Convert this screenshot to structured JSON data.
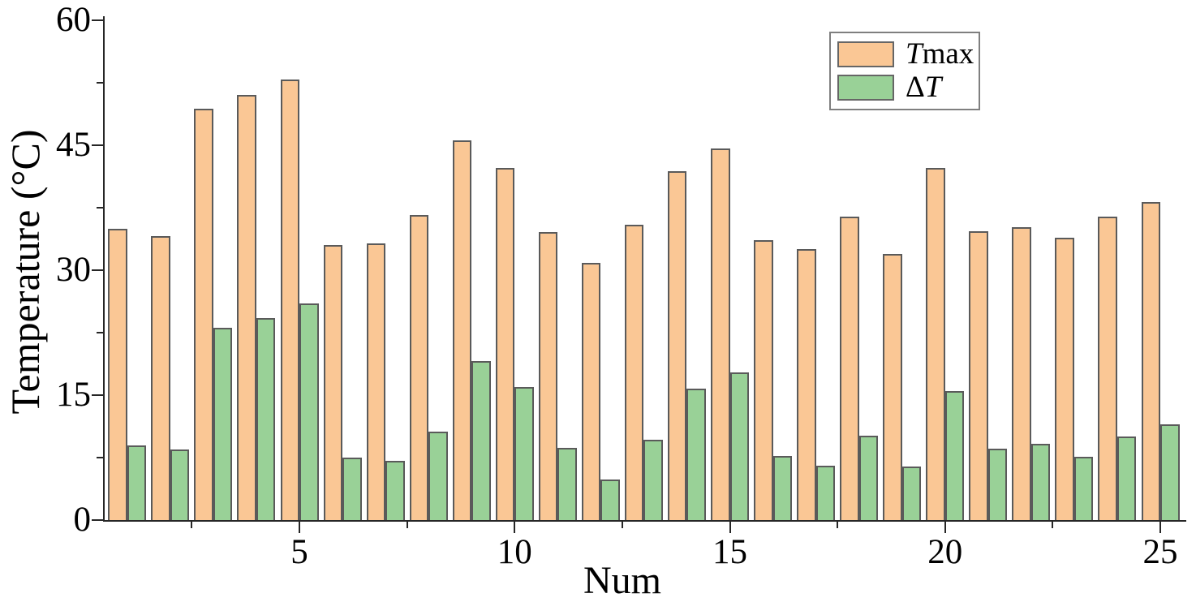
{
  "chart_data": {
    "type": "bar",
    "title": "",
    "xlabel": "Num",
    "ylabel": "Temperature (°C)",
    "categories": [
      1,
      2,
      3,
      4,
      5,
      6,
      7,
      8,
      9,
      10,
      11,
      12,
      13,
      14,
      15,
      16,
      17,
      18,
      19,
      20,
      21,
      22,
      23,
      24,
      25
    ],
    "series": [
      {
        "name": "Tmax",
        "label_segments": [
          {
            "text": "T",
            "italic": true
          },
          {
            "text": "max",
            "italic": false
          }
        ],
        "color": "#FAC795",
        "edge_color": "#5A5A5A",
        "values": [
          35.0,
          34.1,
          49.4,
          51.0,
          52.9,
          33.0,
          33.2,
          36.6,
          45.6,
          42.3,
          34.6,
          30.9,
          35.5,
          41.9,
          44.6,
          33.6,
          32.5,
          36.4,
          31.9,
          42.3,
          34.7,
          35.2,
          33.9,
          36.4,
          38.2
        ]
      },
      {
        "name": "ΔT",
        "label_segments": [
          {
            "text": "Δ",
            "italic": false
          },
          {
            "text": "T",
            "italic": true
          }
        ],
        "color": "#99D197",
        "edge_color": "#5A5A5A",
        "values": [
          9.0,
          8.5,
          23.1,
          24.3,
          26.0,
          7.5,
          7.1,
          10.6,
          19.1,
          16.0,
          8.7,
          4.9,
          9.6,
          15.8,
          17.7,
          7.7,
          6.5,
          10.1,
          6.4,
          15.5,
          8.6,
          9.2,
          7.6,
          10.0,
          11.5
        ]
      }
    ],
    "ylim": [
      0,
      60
    ],
    "yticks": [
      0,
      15,
      30,
      45,
      60
    ],
    "yticks_minor": [
      7.5,
      22.5,
      37.5,
      52.5
    ],
    "xticks": [
      5,
      10,
      15,
      20,
      25
    ],
    "xticks_minor": [
      2.5,
      7.5,
      12.5,
      17.5,
      22.5
    ],
    "grid": false,
    "legend_position": "top-right",
    "axis_color": "#262626",
    "background_color": "#FFFFFF"
  }
}
